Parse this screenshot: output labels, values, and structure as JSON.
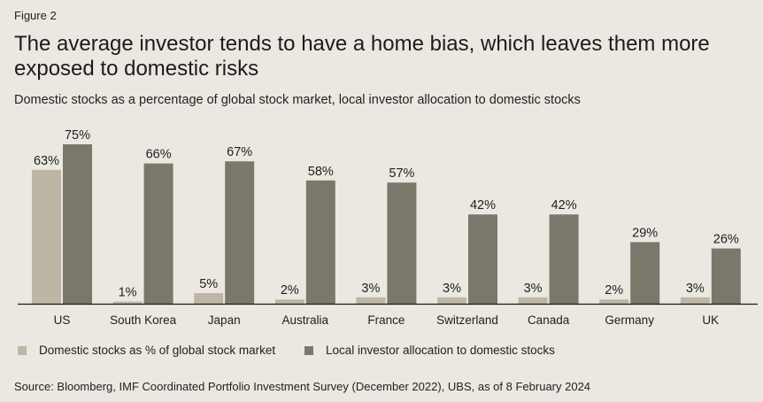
{
  "figure_label": "Figure 2",
  "title": "The average investor tends to have a home bias, which leaves them more exposed to domestic risks",
  "subtitle": "Domestic stocks as a percentage of global stock market, local investor allocation to domestic stocks",
  "source": "Source: Bloomberg, IMF Coordinated Portfolio Investment Survey (December 2022), UBS, as of 8 February 2024",
  "colors": {
    "series1": "#bdb6a5",
    "series2": "#7a786b",
    "axis": "#1a1a1a",
    "background": "#eae8e1"
  },
  "chart_data": {
    "type": "bar",
    "title": "The average investor tends to have a home bias, which leaves them more exposed to domestic risks",
    "subtitle": "Domestic stocks as a percentage of global stock market, local investor allocation to domestic stocks",
    "categories": [
      "US",
      "South Korea",
      "Japan",
      "Australia",
      "France",
      "Switzerland",
      "Canada",
      "Germany",
      "UK"
    ],
    "series": [
      {
        "name": "Domestic stocks as % of global stock market",
        "values": [
          63,
          1,
          5,
          2,
          3,
          3,
          3,
          2,
          3
        ],
        "labels": [
          "63%",
          "1%",
          "5%",
          "2%",
          "3%",
          "3%",
          "3%",
          "2%",
          "3%"
        ]
      },
      {
        "name": "Local investor allocation to domestic stocks",
        "values": [
          75,
          66,
          67,
          58,
          57,
          42,
          42,
          29,
          26
        ],
        "labels": [
          "75%",
          "66%",
          "67%",
          "58%",
          "57%",
          "42%",
          "42%",
          "29%",
          "26%"
        ]
      }
    ],
    "ylim": [
      0,
      80
    ],
    "grid": false,
    "legend_position": "bottom-left",
    "data_labels": true
  }
}
